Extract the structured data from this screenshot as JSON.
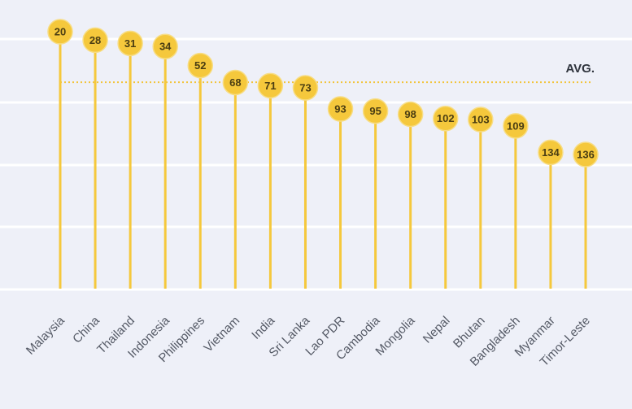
{
  "chart_data": {
    "type": "lollipop",
    "categories": [
      "Malaysia",
      "China",
      "Thailand",
      "Indonesia",
      "Philippines",
      "Vietnam",
      "India",
      "Sri Lanka",
      "Lao PDR",
      "Cambodia",
      "Mongolia",
      "Nepal",
      "Bhutan",
      "Bangladesh",
      "Myanmar",
      "Timor-Leste"
    ],
    "values": [
      20,
      28,
      31,
      34,
      52,
      68,
      71,
      73,
      93,
      95,
      98,
      102,
      103,
      109,
      134,
      136
    ],
    "reference_line": {
      "label": "AVG.",
      "value": 80
    },
    "title": "",
    "xlabel": "",
    "ylabel": "",
    "y_axis_inverted": true,
    "ylim": [
      0,
      250
    ],
    "grid": true,
    "colors": {
      "marker": "#f5c83c",
      "background": "#eef0f8",
      "grid": "#ffffff"
    }
  }
}
